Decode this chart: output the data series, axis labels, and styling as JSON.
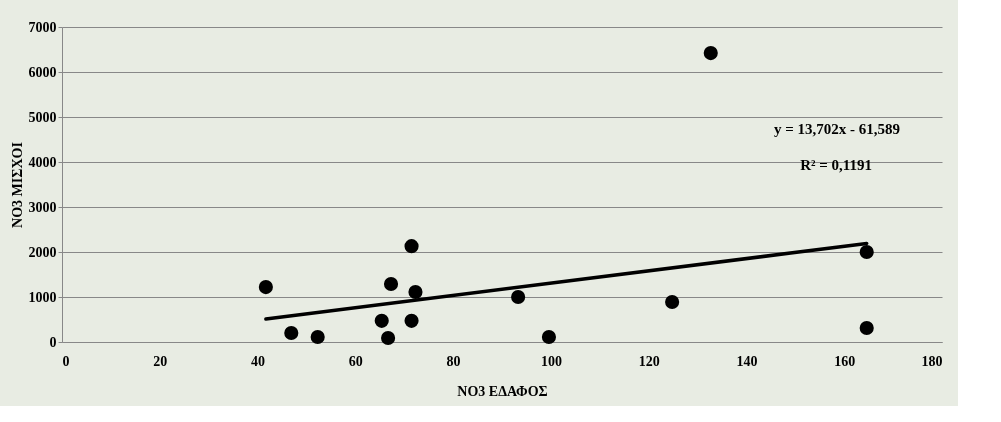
{
  "chart_data": {
    "type": "scatter",
    "xlabel": "NO3 ΕΔΑΦΟΣ",
    "ylabel": "NO3 ΜΙΣΧΟΙ",
    "xlim": [
      0,
      180
    ],
    "xticks": [
      0,
      20,
      40,
      60,
      80,
      100,
      120,
      140,
      160,
      180
    ],
    "ylim": [
      0,
      7000
    ],
    "yticks": [
      0,
      1000,
      2000,
      3000,
      4000,
      5000,
      6000,
      7000
    ],
    "grid": "y",
    "annotations": [
      "y = 13,702x - 61,589",
      "R² = 0,1191"
    ],
    "series": [
      {
        "marker": "circle",
        "color": "#000000",
        "x": [
          41.7,
          46.9,
          52.3,
          65.4,
          66.7,
          67.3,
          71.5,
          71.5,
          72.3,
          93.3,
          99.6,
          124.8,
          132.7,
          164.6,
          164.6
        ],
        "values": [
          1220,
          200,
          110,
          470,
          90,
          1290,
          2130,
          470,
          1110,
          1000,
          110,
          890,
          6420,
          2000,
          310
        ]
      },
      {
        "type": "line",
        "marker": "none",
        "color": "#000000",
        "x": [
          41.7,
          164.6
        ],
        "values": [
          510,
          2190
        ]
      }
    ]
  }
}
